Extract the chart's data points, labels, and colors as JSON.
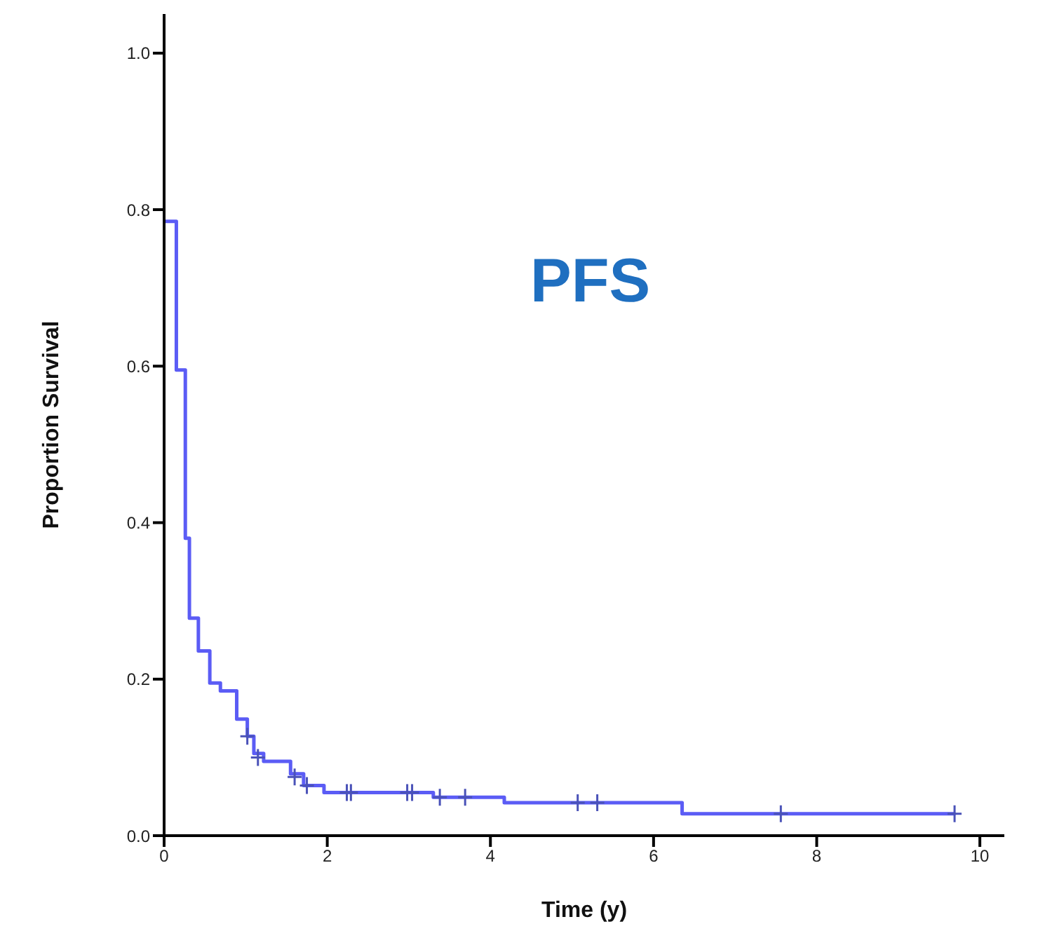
{
  "chart_data": {
    "type": "step",
    "xlabel": "Time (y)",
    "ylabel": "Proportion Survival",
    "annotations": [
      "PFS"
    ],
    "xlim": [
      0,
      10.3
    ],
    "ylim": [
      0,
      1.05
    ],
    "xticks": [
      0,
      2,
      4,
      6,
      8,
      10
    ],
    "yticks": [
      {
        "value": 0,
        "label": "0.0"
      },
      0.2,
      0.4,
      0.6,
      0.8,
      {
        "value": 1,
        "label": "1.0"
      }
    ],
    "grid": false,
    "series": [
      {
        "color": "#5b5cf5",
        "marker": "none",
        "line_style": "solid",
        "x": [
          0,
          0.15,
          0.26,
          0.31,
          0.42,
          0.56,
          0.69,
          0.89,
          1.02,
          1.1,
          1.22,
          1.55,
          1.71,
          1.96,
          3.3,
          4.17,
          6.35,
          9.7
        ],
        "values": [
          0.785,
          0.595,
          0.38,
          0.278,
          0.236,
          0.195,
          0.185,
          0.149,
          0.127,
          0.105,
          0.095,
          0.079,
          0.064,
          0.055,
          0.049,
          0.042,
          0.028,
          0.028
        ]
      },
      {
        "type": "scatter",
        "color": "#4a52b8",
        "marker": "cross",
        "x": [
          1.02,
          1.15,
          1.6,
          1.75,
          2.24,
          2.29,
          2.98,
          3.04,
          3.38,
          3.69,
          5.07,
          5.31,
          7.56,
          9.69
        ],
        "values": [
          0.127,
          0.1,
          0.075,
          0.064,
          0.055,
          0.055,
          0.055,
          0.055,
          0.049,
          0.049,
          0.042,
          0.042,
          0.028,
          0.028
        ]
      }
    ]
  }
}
